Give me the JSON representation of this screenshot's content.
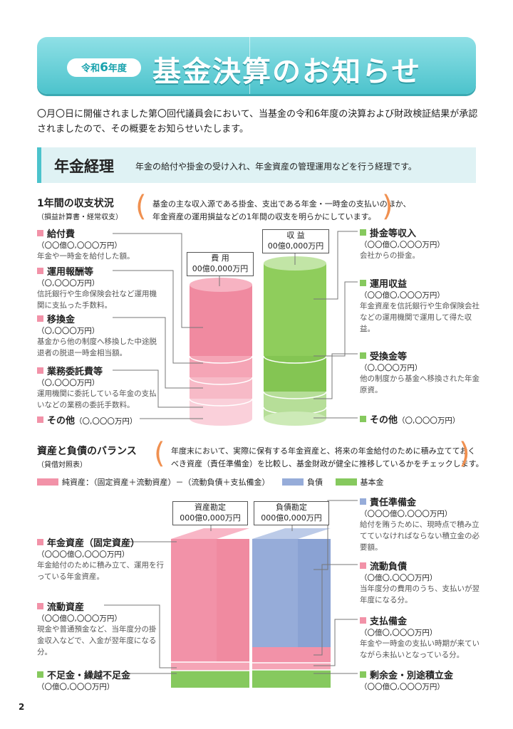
{
  "header": {
    "badge_prefix": "令和",
    "badge_num": "6",
    "badge_suffix": "年度",
    "title": "基金決算のお知らせ"
  },
  "intro": "〇月〇日に開催されました第〇回代議員会において、当基金の令和6年度の決算および財政検証結果が承認されましたので、その概要をお知らせいたします。",
  "section": {
    "title": "年金経理",
    "desc": "年金の給付や掛金の受け入れ、年金資産の管理運用などを行う経理です。"
  },
  "income": {
    "heading": "1年間の収支状況",
    "sub": "（損益計算書・経常収支）",
    "note_line1": "基金の主な収入源である掛金、支出である年金・一時金の支払いのほか、",
    "note_line2": "年金資産の運用損益などの1年間の収支を明らかにしています。",
    "expense_box": {
      "label": "費 用",
      "amount": "00億0,000万円"
    },
    "revenue_box": {
      "label": "収 益",
      "amount": "00億0,000万円"
    },
    "left_items": [
      {
        "title": "給付費",
        "amount": "（〇〇億〇,〇〇〇万円）",
        "desc": "年金や一時金を給付した額。"
      },
      {
        "title": "運用報酬等",
        "amount": "（〇,〇〇〇万円）",
        "desc": "信託銀行や生命保険会社など運用機関に支払った手数料。"
      },
      {
        "title": "移換金",
        "amount": "（〇,〇〇〇万円）",
        "desc": "基金から他の制度へ移換した中途脱退者の脱退一時金相当額。"
      },
      {
        "title": "業務委託費等",
        "amount": "（〇,〇〇〇万円）",
        "desc": "運用機関に委託している年金の支払いなどの業務の委託手数料。"
      },
      {
        "title": "その他",
        "amount": "（〇,〇〇〇万円）",
        "desc": ""
      }
    ],
    "right_items": [
      {
        "title": "掛金等収入",
        "amount": "（〇〇億〇,〇〇〇万円）",
        "desc": "会社からの掛金。"
      },
      {
        "title": "運用収益",
        "amount": "（〇〇億〇,〇〇〇万円）",
        "desc": "年金資産を信託銀行や生命保険会社などの運用機関で運用して得た収益。"
      },
      {
        "title": "受換金等",
        "amount": "（〇,〇〇〇万円）",
        "desc": "他の制度から基金へ移換された年金原資。"
      },
      {
        "title": "その他",
        "amount": "（〇,〇〇〇万円）",
        "desc": ""
      }
    ]
  },
  "balance": {
    "heading": "資産と負債のバランス",
    "sub": "（貸借対照表）",
    "note_line1": "年度末において、実際に保有する年金資産と、将来の年金給付のために積み立てておく",
    "note_line2": "べき資産（責任準備金）を比較し、基金財政が健全に推移しているかをチェックします。",
    "legend": [
      {
        "label": "純資産：（固定資産＋流動資産）－（流動負債＋支払備金）",
        "color": "#f292a8"
      },
      {
        "label": "負債",
        "color": "#96acd9"
      },
      {
        "label": "基本金",
        "color": "#86c95e"
      }
    ],
    "asset_box": {
      "label": "資産勘定",
      "amount": "000億0,000万円"
    },
    "liability_box": {
      "label": "負債勘定",
      "amount": "000億0,000万円"
    },
    "left_items": [
      {
        "title": "年金資産（固定資産）",
        "amount": "（〇〇〇億〇,〇〇〇万円）",
        "desc": "年金給付のために積み立て、運用を行っている年金資産。"
      },
      {
        "title": "流動資産",
        "amount": "（〇〇億〇,〇〇〇万円）",
        "desc": "現金や普通預金など、当年度分の掛金収入などで、入金が翌年度になる分。"
      },
      {
        "title": "不足金・繰越不足金",
        "amount": "（〇億〇,〇〇〇万円）",
        "desc": ""
      }
    ],
    "right_items": [
      {
        "title": "責任準備金",
        "amount": "（〇〇〇億〇,〇〇〇万円）",
        "desc": "給付を賄うために、現時点で積み立てていなければならない積立金の必要額。"
      },
      {
        "title": "流動負債",
        "amount": "（〇億〇,〇〇〇万円）",
        "desc": "当年度分の費用のうち、支払いが翌年度になる分。"
      },
      {
        "title": "支払備金",
        "amount": "（〇億〇,〇〇〇万円）",
        "desc": "年金や一時金の支払い時期が来ていながら未払いとなっている分。"
      },
      {
        "title": "剰余金・別途積立金",
        "amount": "（〇〇億〇,〇〇〇万円）",
        "desc": ""
      }
    ]
  },
  "colors": {
    "pink": "#f292a8",
    "green": "#86c95e",
    "blue": "#96acd9",
    "teal": "#4cc3cc"
  },
  "page_number": "2"
}
